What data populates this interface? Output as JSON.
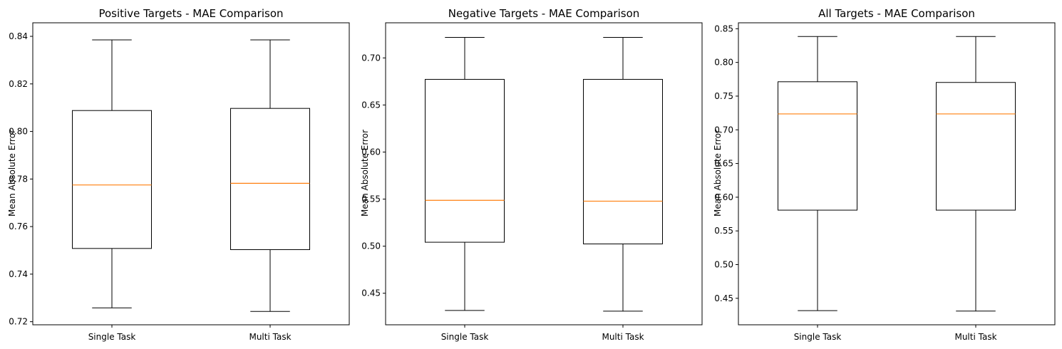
{
  "chart_data": [
    {
      "type": "box",
      "title": "Positive Targets - MAE Comparison",
      "xlabel": "",
      "ylabel": "Mean Absolute Error",
      "categories": [
        "Single Task",
        "Multi Task"
      ],
      "boxes": [
        {
          "whisker_low": 0.7258,
          "q1": 0.7508,
          "median": 0.7775,
          "q3": 0.8088,
          "whisker_high": 0.8385
        },
        {
          "whisker_low": 0.7243,
          "q1": 0.7503,
          "median": 0.7782,
          "q3": 0.8097,
          "whisker_high": 0.8385
        }
      ],
      "ylim": [
        0.7187,
        0.8457
      ],
      "yticks": [
        0.72,
        0.74,
        0.76,
        0.78,
        0.8,
        0.82,
        0.84
      ],
      "ytick_labels": [
        "0.72",
        "0.74",
        "0.76",
        "0.78",
        "0.80",
        "0.82",
        "0.84"
      ],
      "grid": false,
      "legend": "none"
    },
    {
      "type": "box",
      "title": "Negative Targets - MAE Comparison",
      "xlabel": "",
      "ylabel": "Mean Absolute Error",
      "categories": [
        "Single Task",
        "Multi Task"
      ],
      "boxes": [
        {
          "whisker_low": 0.4317,
          "q1": 0.5042,
          "median": 0.5487,
          "q3": 0.6772,
          "whisker_high": 0.7218
        },
        {
          "whisker_low": 0.431,
          "q1": 0.5024,
          "median": 0.5478,
          "q3": 0.6772,
          "whisker_high": 0.7218
        }
      ],
      "ylim": [
        0.4165,
        0.7373
      ],
      "yticks": [
        0.45,
        0.5,
        0.55,
        0.6,
        0.65,
        0.7
      ],
      "ytick_labels": [
        "0.45",
        "0.50",
        "0.55",
        "0.60",
        "0.65",
        "0.70"
      ],
      "grid": false,
      "legend": "none"
    },
    {
      "type": "box",
      "title": "All Targets - MAE Comparison",
      "xlabel": "",
      "ylabel": "Mean Absolute Error",
      "categories": [
        "Single Task",
        "Multi Task"
      ],
      "boxes": [
        {
          "whisker_low": 0.4317,
          "q1": 0.5808,
          "median": 0.7236,
          "q3": 0.7713,
          "whisker_high": 0.8385
        },
        {
          "whisker_low": 0.431,
          "q1": 0.5808,
          "median": 0.7236,
          "q3": 0.7703,
          "whisker_high": 0.8385
        }
      ],
      "ylim": [
        0.4107,
        0.8588
      ],
      "yticks": [
        0.45,
        0.5,
        0.55,
        0.6,
        0.65,
        0.7,
        0.75,
        0.8,
        0.85
      ],
      "ytick_labels": [
        "0.45",
        "0.50",
        "0.55",
        "0.60",
        "0.65",
        "0.70",
        "0.75",
        "0.80",
        "0.85"
      ],
      "grid": false,
      "legend": "none"
    }
  ],
  "colors": {
    "box": "#000000",
    "median": "#ff7f0e",
    "background": "#ffffff"
  }
}
